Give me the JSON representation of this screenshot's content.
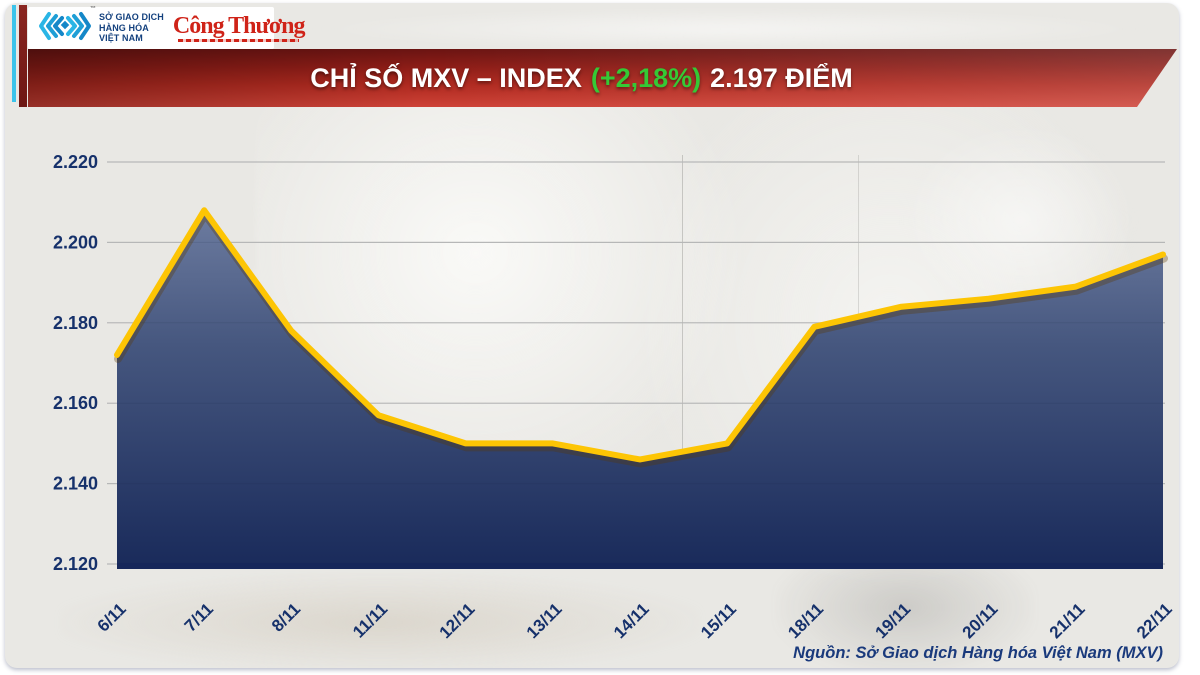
{
  "brand": {
    "mxv_name_lines": [
      "SỞ GIAO DỊCH",
      "HÀNG HÓA",
      "VIỆT NAM"
    ],
    "congthuong_name": "Công Thương",
    "trademark": "™"
  },
  "banner": {
    "title_main": "CHỈ SỐ MXV – INDEX",
    "title_change": "(+2,18%)",
    "title_value": "2.197 ĐIỂM",
    "change_color": "#35c935",
    "banner_color": "#a02218"
  },
  "chart_data": {
    "type": "area",
    "title": "CHỈ SỐ MXV – INDEX (+2,18%) 2.197 ĐIỂM",
    "xlabel": "",
    "ylabel": "",
    "categories": [
      "6/11",
      "7/11",
      "8/11",
      "11/11",
      "12/11",
      "13/11",
      "14/11",
      "15/11",
      "18/11",
      "19/11",
      "20/11",
      "21/11",
      "22/11"
    ],
    "values": [
      2172,
      2208,
      2178,
      2157,
      2150,
      2150,
      2146,
      2150,
      2179,
      2184,
      2186,
      2189,
      2197
    ],
    "ylim": [
      2120,
      2220
    ],
    "ytick_values": [
      2120,
      2140,
      2160,
      2180,
      2200,
      2220
    ],
    "yticks": [
      "2.120",
      "2.140",
      "2.160",
      "2.180",
      "2.200",
      "2.220"
    ],
    "grid": true,
    "legend": false,
    "line_color": "#fdc504",
    "line_shadow_color": "rgba(90,55,0,0.32)",
    "area_top_color": "#6d7ca0",
    "area_mid_color": "#46577f",
    "area_bottom_color": "#1a2b5b",
    "axis_text_color": "#16316b",
    "x_axis_line_color": "#16275a"
  },
  "footer": {
    "source": "Nguồn: Sở Giao dịch Hàng hóa Việt Nam (MXV)"
  }
}
